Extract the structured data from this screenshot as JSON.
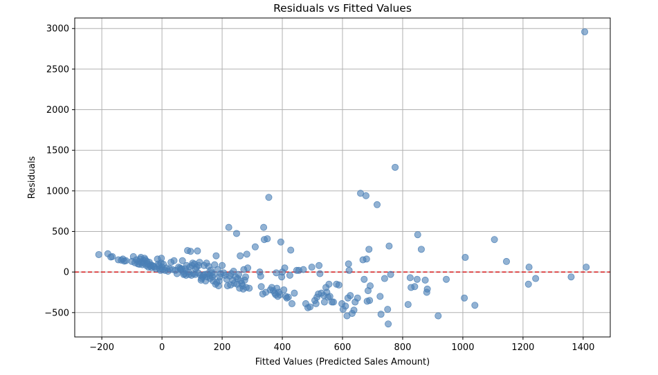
{
  "chart_data": {
    "type": "scatter",
    "title": "Residuals vs Fitted Values",
    "xlabel": "Fitted Values (Predicted Sales Amount)",
    "ylabel": "Residuals",
    "xlim": [
      -290,
      1490
    ],
    "ylim": [
      -800,
      3130
    ],
    "xticks": [
      -200,
      0,
      200,
      400,
      600,
      800,
      1000,
      1200,
      1400
    ],
    "xtick_labels": [
      "−200",
      "0",
      "200",
      "400",
      "600",
      "800",
      "1000",
      "1200",
      "1400"
    ],
    "yticks": [
      -500,
      0,
      500,
      1000,
      1500,
      2000,
      2500,
      3000
    ],
    "ytick_labels": [
      "−500",
      "0",
      "500",
      "1000",
      "1500",
      "2000",
      "2500",
      "3000"
    ],
    "grid": true,
    "reference_line": {
      "y": 0,
      "style": "dashed",
      "color": "#d62728"
    },
    "point_color": "#4a7fb5",
    "points": [
      [
        -210,
        215
      ],
      [
        -180,
        225
      ],
      [
        -170,
        185
      ],
      [
        -165,
        190
      ],
      [
        -145,
        150
      ],
      [
        -135,
        145
      ],
      [
        -130,
        160
      ],
      [
        -125,
        135
      ],
      [
        -120,
        140
      ],
      [
        -100,
        130
      ],
      [
        -95,
        190
      ],
      [
        -90,
        115
      ],
      [
        -85,
        150
      ],
      [
        -80,
        100
      ],
      [
        -78,
        130
      ],
      [
        -75,
        95
      ],
      [
        -72,
        160
      ],
      [
        -70,
        180
      ],
      [
        -68,
        120
      ],
      [
        -65,
        90
      ],
      [
        -62,
        140
      ],
      [
        -60,
        110
      ],
      [
        -58,
        170
      ],
      [
        -55,
        150
      ],
      [
        -52,
        80
      ],
      [
        -50,
        130
      ],
      [
        -48,
        100
      ],
      [
        -45,
        60
      ],
      [
        -42,
        120
      ],
      [
        -40,
        75
      ],
      [
        -38,
        90
      ],
      [
        -35,
        55
      ],
      [
        -32,
        80
      ],
      [
        -28,
        70
      ],
      [
        -25,
        60
      ],
      [
        -20,
        40
      ],
      [
        -15,
        160
      ],
      [
        -12,
        100
      ],
      [
        -10,
        80
      ],
      [
        -8,
        40
      ],
      [
        -5,
        20
      ],
      [
        -3,
        110
      ],
      [
        -2,
        170
      ],
      [
        0,
        60
      ],
      [
        2,
        30
      ],
      [
        5,
        95
      ],
      [
        10,
        20
      ],
      [
        15,
        50
      ],
      [
        20,
        10
      ],
      [
        25,
        40
      ],
      [
        30,
        120
      ],
      [
        35,
        30
      ],
      [
        40,
        140
      ],
      [
        45,
        20
      ],
      [
        50,
        -20
      ],
      [
        55,
        60
      ],
      [
        60,
        50
      ],
      [
        62,
        30
      ],
      [
        65,
        40
      ],
      [
        68,
        140
      ],
      [
        70,
        10
      ],
      [
        72,
        -30
      ],
      [
        75,
        -20
      ],
      [
        78,
        40
      ],
      [
        80,
        -40
      ],
      [
        82,
        80
      ],
      [
        85,
        265
      ],
      [
        88,
        0
      ],
      [
        90,
        -30
      ],
      [
        92,
        60
      ],
      [
        95,
        255
      ],
      [
        98,
        -40
      ],
      [
        100,
        80
      ],
      [
        102,
        110
      ],
      [
        105,
        -20
      ],
      [
        108,
        100
      ],
      [
        110,
        -30
      ],
      [
        112,
        40
      ],
      [
        115,
        60
      ],
      [
        118,
        260
      ],
      [
        120,
        -10
      ],
      [
        122,
        80
      ],
      [
        125,
        120
      ],
      [
        128,
        -40
      ],
      [
        130,
        -100
      ],
      [
        132,
        -80
      ],
      [
        135,
        -60
      ],
      [
        138,
        -40
      ],
      [
        140,
        80
      ],
      [
        142,
        -30
      ],
      [
        145,
        -110
      ],
      [
        148,
        110
      ],
      [
        150,
        -60
      ],
      [
        152,
        -20
      ],
      [
        155,
        70
      ],
      [
        158,
        -40
      ],
      [
        160,
        -80
      ],
      [
        162,
        20
      ],
      [
        165,
        -10
      ],
      [
        168,
        -60
      ],
      [
        170,
        -110
      ],
      [
        172,
        -30
      ],
      [
        175,
        90
      ],
      [
        178,
        -150
      ],
      [
        180,
        200
      ],
      [
        182,
        -130
      ],
      [
        185,
        30
      ],
      [
        188,
        -170
      ],
      [
        190,
        -110
      ],
      [
        192,
        -60
      ],
      [
        195,
        -20
      ],
      [
        200,
        80
      ],
      [
        205,
        -10
      ],
      [
        210,
        -40
      ],
      [
        215,
        -90
      ],
      [
        218,
        -170
      ],
      [
        222,
        550
      ],
      [
        225,
        -50
      ],
      [
        228,
        -160
      ],
      [
        230,
        -20
      ],
      [
        235,
        -100
      ],
      [
        238,
        10
      ],
      [
        240,
        -140
      ],
      [
        245,
        -60
      ],
      [
        248,
        475
      ],
      [
        250,
        -150
      ],
      [
        252,
        -80
      ],
      [
        255,
        -30
      ],
      [
        258,
        -200
      ],
      [
        260,
        200
      ],
      [
        262,
        -110
      ],
      [
        265,
        -140
      ],
      [
        268,
        -170
      ],
      [
        270,
        -210
      ],
      [
        272,
        30
      ],
      [
        275,
        -100
      ],
      [
        278,
        -60
      ],
      [
        280,
        -190
      ],
      [
        282,
        220
      ],
      [
        285,
        50
      ],
      [
        290,
        -200
      ],
      [
        310,
        310
      ],
      [
        325,
        0
      ],
      [
        328,
        -50
      ],
      [
        330,
        -180
      ],
      [
        335,
        -270
      ],
      [
        338,
        550
      ],
      [
        340,
        400
      ],
      [
        345,
        -250
      ],
      [
        350,
        410
      ],
      [
        355,
        920
      ],
      [
        360,
        -220
      ],
      [
        365,
        -190
      ],
      [
        370,
        -230
      ],
      [
        375,
        -260
      ],
      [
        378,
        -280
      ],
      [
        380,
        -10
      ],
      [
        382,
        -200
      ],
      [
        385,
        -300
      ],
      [
        388,
        -250
      ],
      [
        392,
        -280
      ],
      [
        395,
        370
      ],
      [
        398,
        -60
      ],
      [
        400,
        0
      ],
      [
        405,
        -220
      ],
      [
        408,
        50
      ],
      [
        412,
        -300
      ],
      [
        415,
        -320
      ],
      [
        420,
        -310
      ],
      [
        425,
        -40
      ],
      [
        428,
        270
      ],
      [
        432,
        -390
      ],
      [
        440,
        -260
      ],
      [
        448,
        20
      ],
      [
        455,
        20
      ],
      [
        470,
        30
      ],
      [
        478,
        -390
      ],
      [
        485,
        -440
      ],
      [
        492,
        -430
      ],
      [
        498,
        60
      ],
      [
        508,
        -350
      ],
      [
        512,
        -390
      ],
      [
        515,
        -310
      ],
      [
        520,
        -270
      ],
      [
        522,
        80
      ],
      [
        525,
        -20
      ],
      [
        530,
        -260
      ],
      [
        538,
        -290
      ],
      [
        540,
        -370
      ],
      [
        545,
        -190
      ],
      [
        548,
        -250
      ],
      [
        552,
        -310
      ],
      [
        555,
        -150
      ],
      [
        558,
        -300
      ],
      [
        565,
        -370
      ],
      [
        570,
        -370
      ],
      [
        580,
        -150
      ],
      [
        588,
        -160
      ],
      [
        598,
        -390
      ],
      [
        602,
        -460
      ],
      [
        610,
        -420
      ],
      [
        615,
        -540
      ],
      [
        618,
        -320
      ],
      [
        620,
        100
      ],
      [
        622,
        20
      ],
      [
        626,
        -290
      ],
      [
        632,
        -510
      ],
      [
        638,
        -470
      ],
      [
        642,
        -370
      ],
      [
        650,
        -320
      ],
      [
        660,
        970
      ],
      [
        668,
        150
      ],
      [
        672,
        -90
      ],
      [
        678,
        940
      ],
      [
        680,
        160
      ],
      [
        682,
        -360
      ],
      [
        685,
        -230
      ],
      [
        688,
        280
      ],
      [
        690,
        -350
      ],
      [
        692,
        -170
      ],
      [
        715,
        830
      ],
      [
        725,
        -300
      ],
      [
        728,
        -520
      ],
      [
        740,
        -80
      ],
      [
        750,
        -460
      ],
      [
        752,
        -640
      ],
      [
        755,
        320
      ],
      [
        760,
        -30
      ],
      [
        775,
        1290
      ],
      [
        818,
        -400
      ],
      [
        825,
        -70
      ],
      [
        828,
        -190
      ],
      [
        840,
        -180
      ],
      [
        848,
        -90
      ],
      [
        850,
        460
      ],
      [
        862,
        280
      ],
      [
        875,
        -100
      ],
      [
        880,
        -250
      ],
      [
        882,
        -210
      ],
      [
        918,
        -540
      ],
      [
        945,
        -90
      ],
      [
        1005,
        -320
      ],
      [
        1008,
        180
      ],
      [
        1040,
        -410
      ],
      [
        1105,
        400
      ],
      [
        1145,
        130
      ],
      [
        1218,
        -150
      ],
      [
        1220,
        60
      ],
      [
        1242,
        -80
      ],
      [
        1360,
        -60
      ],
      [
        1405,
        2960
      ],
      [
        1410,
        60
      ]
    ]
  }
}
